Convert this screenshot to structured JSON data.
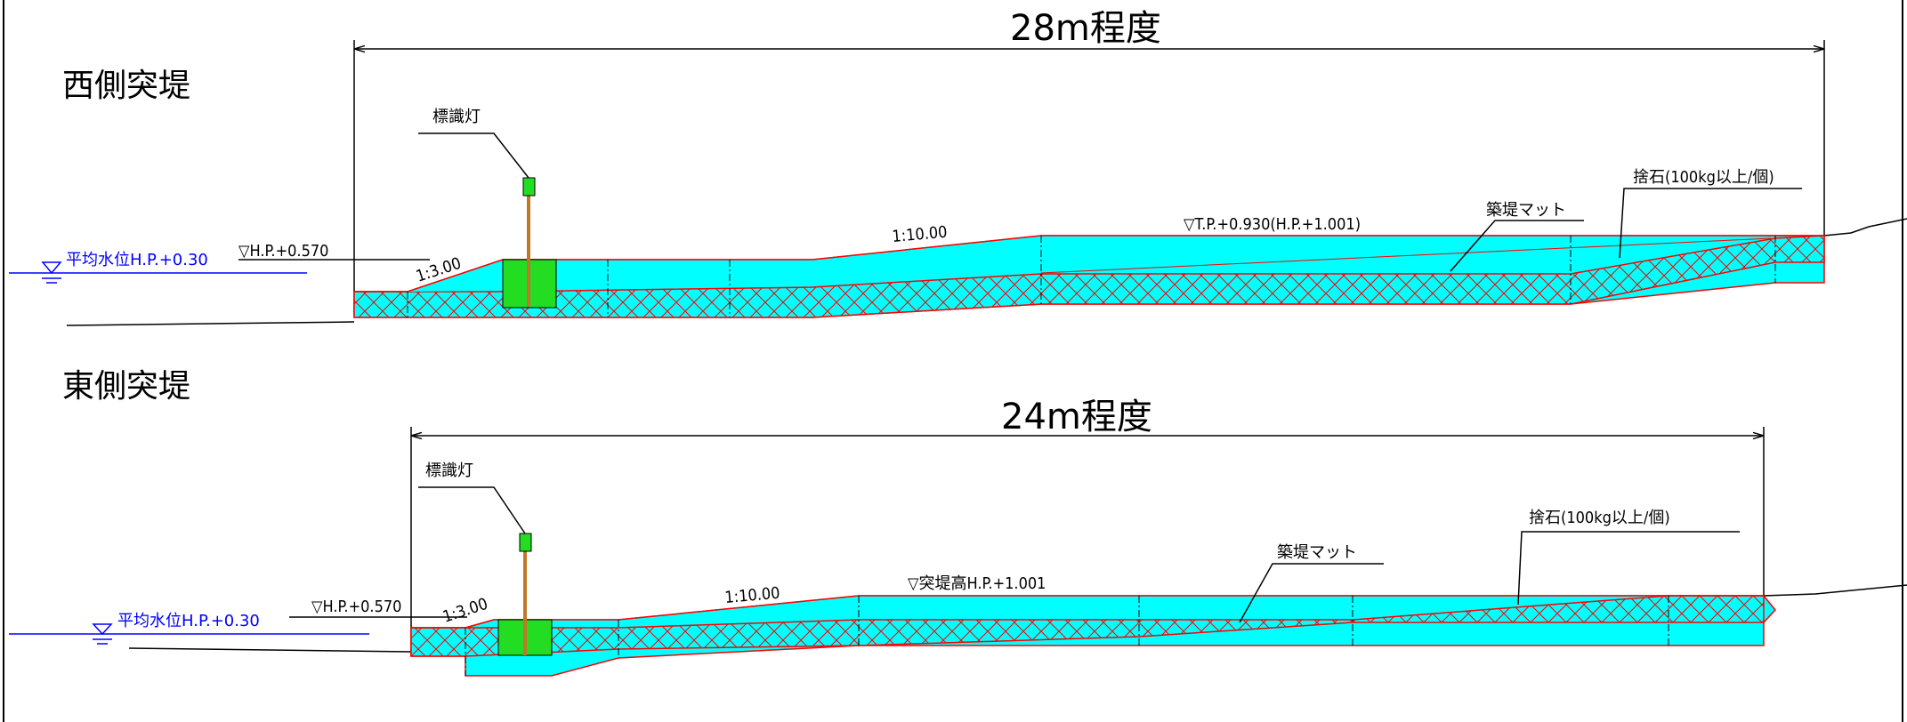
{
  "west": {
    "section_title": "西側突堤",
    "overall_length": "28m程度",
    "light_label": "標識灯",
    "water_level": "平均水位H.P.+0.30",
    "base_level": "▽H.P.+0.570",
    "slope_front": "1:3.00",
    "slope_mid": "1:10.00",
    "crest_level": "▽T.P.+0.930(H.P.+1.001)",
    "mat_label": "築堤マット",
    "riprap_label": "捨石(100kg以上/個)"
  },
  "east": {
    "section_title": "東側突堤",
    "overall_length": "24m程度",
    "light_label": "標識灯",
    "water_level": "平均水位H.P.+0.30",
    "base_level": "▽H.P.+0.570",
    "slope_front": "1:3.00",
    "slope_mid": "1:10.00",
    "crest_level": "▽突堤高H.P.+1.001",
    "mat_label": "築堤マット",
    "riprap_label": "捨石(100kg以上/個)"
  },
  "colors": {
    "fill": "#00ffff",
    "outline": "#ff0000",
    "light": "#22dd22",
    "water": "#0000ff"
  }
}
